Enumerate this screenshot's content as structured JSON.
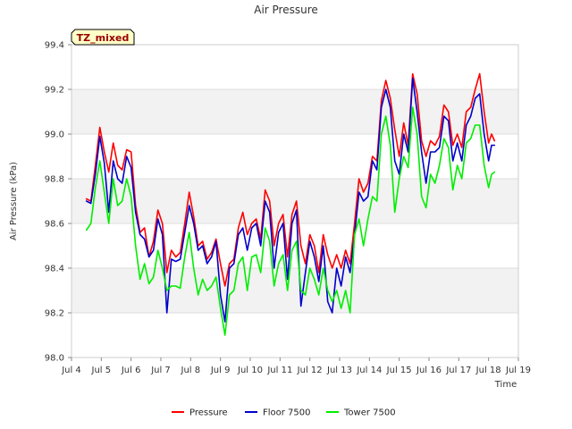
{
  "chart_data": {
    "type": "line",
    "title": "Air Pressure",
    "xlabel": "Time",
    "ylabel": "Air Pressure (kPa)",
    "badge": "TZ_mixed",
    "xlim": [
      4,
      19
    ],
    "ylim": [
      98.0,
      99.4
    ],
    "x_ticks": [
      {
        "v": 4,
        "label": "Jul 4"
      },
      {
        "v": 5,
        "label": "Jul 5"
      },
      {
        "v": 6,
        "label": "Jul 6"
      },
      {
        "v": 7,
        "label": "Jul 7"
      },
      {
        "v": 8,
        "label": "Jul 8"
      },
      {
        "v": 9,
        "label": "Jul 9"
      },
      {
        "v": 10,
        "label": "Jul 10"
      },
      {
        "v": 11,
        "label": "Jul 11"
      },
      {
        "v": 12,
        "label": "Jul 12"
      },
      {
        "v": 13,
        "label": "Jul 13"
      },
      {
        "v": 14,
        "label": "Jul 14"
      },
      {
        "v": 15,
        "label": "Jul 15"
      },
      {
        "v": 16,
        "label": "Jul 16"
      },
      {
        "v": 17,
        "label": "Jul 17"
      },
      {
        "v": 18,
        "label": "Jul 18"
      },
      {
        "v": 19,
        "label": "Jul 19"
      }
    ],
    "y_ticks": [
      98.0,
      98.2,
      98.4,
      98.6,
      98.8,
      99.0,
      99.2,
      99.4
    ],
    "grid": true,
    "legend_position": "bottom",
    "series": [
      {
        "name": "Pressure",
        "color": "#ff0000",
        "points": [
          [
            4.5,
            98.71
          ],
          [
            4.65,
            98.7
          ],
          [
            4.8,
            98.86
          ],
          [
            4.95,
            99.03
          ],
          [
            5.1,
            98.92
          ],
          [
            5.25,
            98.83
          ],
          [
            5.4,
            98.96
          ],
          [
            5.55,
            98.86
          ],
          [
            5.7,
            98.84
          ],
          [
            5.85,
            98.93
          ],
          [
            6.0,
            98.92
          ],
          [
            6.15,
            98.68
          ],
          [
            6.3,
            98.56
          ],
          [
            6.45,
            98.58
          ],
          [
            6.6,
            98.45
          ],
          [
            6.75,
            98.52
          ],
          [
            6.9,
            98.66
          ],
          [
            7.05,
            98.6
          ],
          [
            7.2,
            98.38
          ],
          [
            7.35,
            98.48
          ],
          [
            7.5,
            98.45
          ],
          [
            7.65,
            98.47
          ],
          [
            7.8,
            98.6
          ],
          [
            7.95,
            98.74
          ],
          [
            8.1,
            98.63
          ],
          [
            8.25,
            98.5
          ],
          [
            8.4,
            98.52
          ],
          [
            8.55,
            98.44
          ],
          [
            8.7,
            98.47
          ],
          [
            8.85,
            98.53
          ],
          [
            9.0,
            98.42
          ],
          [
            9.15,
            98.32
          ],
          [
            9.3,
            98.42
          ],
          [
            9.45,
            98.44
          ],
          [
            9.6,
            98.58
          ],
          [
            9.75,
            98.65
          ],
          [
            9.9,
            98.55
          ],
          [
            10.05,
            98.6
          ],
          [
            10.2,
            98.62
          ],
          [
            10.35,
            98.53
          ],
          [
            10.5,
            98.75
          ],
          [
            10.65,
            98.7
          ],
          [
            10.8,
            98.5
          ],
          [
            10.95,
            98.6
          ],
          [
            11.1,
            98.64
          ],
          [
            11.25,
            98.45
          ],
          [
            11.4,
            98.64
          ],
          [
            11.55,
            98.7
          ],
          [
            11.7,
            98.5
          ],
          [
            11.85,
            98.42
          ],
          [
            12.0,
            98.55
          ],
          [
            12.15,
            98.5
          ],
          [
            12.3,
            98.38
          ],
          [
            12.45,
            98.55
          ],
          [
            12.6,
            98.46
          ],
          [
            12.75,
            98.4
          ],
          [
            12.9,
            98.46
          ],
          [
            13.05,
            98.4
          ],
          [
            13.2,
            98.48
          ],
          [
            13.35,
            98.42
          ],
          [
            13.5,
            98.6
          ],
          [
            13.65,
            98.8
          ],
          [
            13.8,
            98.74
          ],
          [
            13.95,
            98.78
          ],
          [
            14.1,
            98.9
          ],
          [
            14.25,
            98.88
          ],
          [
            14.4,
            99.15
          ],
          [
            14.55,
            99.24
          ],
          [
            14.7,
            99.16
          ],
          [
            14.85,
            99.02
          ],
          [
            15.0,
            98.9
          ],
          [
            15.15,
            99.05
          ],
          [
            15.3,
            98.95
          ],
          [
            15.45,
            99.27
          ],
          [
            15.6,
            99.18
          ],
          [
            15.75,
            98.97
          ],
          [
            15.9,
            98.9
          ],
          [
            16.05,
            98.97
          ],
          [
            16.2,
            98.95
          ],
          [
            16.35,
            98.99
          ],
          [
            16.5,
            99.13
          ],
          [
            16.65,
            99.1
          ],
          [
            16.8,
            98.95
          ],
          [
            16.95,
            99.0
          ],
          [
            17.1,
            98.94
          ],
          [
            17.25,
            99.1
          ],
          [
            17.4,
            99.12
          ],
          [
            17.55,
            99.2
          ],
          [
            17.7,
            99.27
          ],
          [
            17.85,
            99.1
          ],
          [
            18.0,
            98.96
          ],
          [
            18.1,
            99.0
          ],
          [
            18.2,
            98.97
          ]
        ]
      },
      {
        "name": "Floor 7500",
        "color": "#0000cc",
        "points": [
          [
            4.5,
            98.7
          ],
          [
            4.65,
            98.69
          ],
          [
            4.8,
            98.82
          ],
          [
            4.95,
            98.99
          ],
          [
            5.1,
            98.87
          ],
          [
            5.25,
            98.65
          ],
          [
            5.4,
            98.88
          ],
          [
            5.55,
            98.8
          ],
          [
            5.7,
            98.78
          ],
          [
            5.85,
            98.9
          ],
          [
            6.0,
            98.85
          ],
          [
            6.15,
            98.65
          ],
          [
            6.3,
            98.55
          ],
          [
            6.45,
            98.53
          ],
          [
            6.6,
            98.45
          ],
          [
            6.75,
            98.48
          ],
          [
            6.9,
            98.62
          ],
          [
            7.05,
            98.55
          ],
          [
            7.2,
            98.2
          ],
          [
            7.35,
            98.44
          ],
          [
            7.5,
            98.43
          ],
          [
            7.65,
            98.44
          ],
          [
            7.8,
            98.56
          ],
          [
            7.95,
            98.68
          ],
          [
            8.1,
            98.6
          ],
          [
            8.25,
            98.48
          ],
          [
            8.4,
            98.5
          ],
          [
            8.55,
            98.42
          ],
          [
            8.7,
            98.45
          ],
          [
            8.85,
            98.52
          ],
          [
            9.0,
            98.28
          ],
          [
            9.15,
            98.16
          ],
          [
            9.3,
            98.4
          ],
          [
            9.45,
            98.42
          ],
          [
            9.6,
            98.55
          ],
          [
            9.75,
            98.58
          ],
          [
            9.9,
            98.48
          ],
          [
            10.05,
            98.58
          ],
          [
            10.2,
            98.6
          ],
          [
            10.35,
            98.5
          ],
          [
            10.5,
            98.7
          ],
          [
            10.65,
            98.65
          ],
          [
            10.8,
            98.4
          ],
          [
            10.95,
            98.56
          ],
          [
            11.1,
            98.6
          ],
          [
            11.25,
            98.35
          ],
          [
            11.4,
            98.6
          ],
          [
            11.55,
            98.66
          ],
          [
            11.7,
            98.23
          ],
          [
            11.85,
            98.38
          ],
          [
            12.0,
            98.52
          ],
          [
            12.15,
            98.45
          ],
          [
            12.3,
            98.34
          ],
          [
            12.45,
            98.5
          ],
          [
            12.6,
            98.25
          ],
          [
            12.75,
            98.2
          ],
          [
            12.9,
            98.4
          ],
          [
            13.05,
            98.32
          ],
          [
            13.2,
            98.45
          ],
          [
            13.35,
            98.38
          ],
          [
            13.5,
            98.55
          ],
          [
            13.65,
            98.74
          ],
          [
            13.8,
            98.7
          ],
          [
            13.95,
            98.72
          ],
          [
            14.1,
            98.88
          ],
          [
            14.25,
            98.84
          ],
          [
            14.4,
            99.12
          ],
          [
            14.55,
            99.2
          ],
          [
            14.7,
            99.12
          ],
          [
            14.85,
            98.88
          ],
          [
            15.0,
            98.82
          ],
          [
            15.15,
            99.0
          ],
          [
            15.3,
            98.92
          ],
          [
            15.45,
            99.25
          ],
          [
            15.6,
            99.1
          ],
          [
            15.75,
            98.92
          ],
          [
            15.9,
            98.78
          ],
          [
            16.05,
            98.92
          ],
          [
            16.2,
            98.92
          ],
          [
            16.35,
            98.94
          ],
          [
            16.5,
            99.08
          ],
          [
            16.65,
            99.06
          ],
          [
            16.8,
            98.88
          ],
          [
            16.95,
            98.96
          ],
          [
            17.1,
            98.88
          ],
          [
            17.25,
            99.04
          ],
          [
            17.4,
            99.08
          ],
          [
            17.55,
            99.16
          ],
          [
            17.7,
            99.18
          ],
          [
            17.85,
            99.0
          ],
          [
            18.0,
            98.88
          ],
          [
            18.1,
            98.95
          ],
          [
            18.2,
            98.95
          ]
        ]
      },
      {
        "name": "Tower 7500",
        "color": "#00ee00",
        "points": [
          [
            4.5,
            98.57
          ],
          [
            4.65,
            98.6
          ],
          [
            4.8,
            98.76
          ],
          [
            4.95,
            98.88
          ],
          [
            5.1,
            98.74
          ],
          [
            5.25,
            98.6
          ],
          [
            5.4,
            98.8
          ],
          [
            5.55,
            98.68
          ],
          [
            5.7,
            98.7
          ],
          [
            5.85,
            98.8
          ],
          [
            6.0,
            98.72
          ],
          [
            6.15,
            98.5
          ],
          [
            6.3,
            98.35
          ],
          [
            6.45,
            98.42
          ],
          [
            6.6,
            98.33
          ],
          [
            6.75,
            98.36
          ],
          [
            6.9,
            98.48
          ],
          [
            7.05,
            98.4
          ],
          [
            7.2,
            98.3
          ],
          [
            7.35,
            98.32
          ],
          [
            7.5,
            98.32
          ],
          [
            7.65,
            98.31
          ],
          [
            7.8,
            98.45
          ],
          [
            7.95,
            98.56
          ],
          [
            8.1,
            98.4
          ],
          [
            8.25,
            98.28
          ],
          [
            8.4,
            98.35
          ],
          [
            8.55,
            98.3
          ],
          [
            8.7,
            98.32
          ],
          [
            8.85,
            98.36
          ],
          [
            9.0,
            98.22
          ],
          [
            9.15,
            98.1
          ],
          [
            9.3,
            98.28
          ],
          [
            9.45,
            98.3
          ],
          [
            9.6,
            98.42
          ],
          [
            9.75,
            98.45
          ],
          [
            9.9,
            98.3
          ],
          [
            10.05,
            98.45
          ],
          [
            10.2,
            98.46
          ],
          [
            10.35,
            98.38
          ],
          [
            10.5,
            98.58
          ],
          [
            10.65,
            98.52
          ],
          [
            10.8,
            98.32
          ],
          [
            10.95,
            98.42
          ],
          [
            11.1,
            98.46
          ],
          [
            11.25,
            98.3
          ],
          [
            11.4,
            98.48
          ],
          [
            11.55,
            98.52
          ],
          [
            11.7,
            98.3
          ],
          [
            11.85,
            98.28
          ],
          [
            12.0,
            98.4
          ],
          [
            12.15,
            98.35
          ],
          [
            12.3,
            98.28
          ],
          [
            12.45,
            98.4
          ],
          [
            12.6,
            98.3
          ],
          [
            12.75,
            98.25
          ],
          [
            12.9,
            98.3
          ],
          [
            13.05,
            98.22
          ],
          [
            13.2,
            98.3
          ],
          [
            13.35,
            98.2
          ],
          [
            13.5,
            98.55
          ],
          [
            13.65,
            98.62
          ],
          [
            13.8,
            98.5
          ],
          [
            13.95,
            98.62
          ],
          [
            14.1,
            98.72
          ],
          [
            14.25,
            98.7
          ],
          [
            14.4,
            99.0
          ],
          [
            14.55,
            99.08
          ],
          [
            14.7,
            98.95
          ],
          [
            14.85,
            98.65
          ],
          [
            15.0,
            98.8
          ],
          [
            15.15,
            98.9
          ],
          [
            15.3,
            98.85
          ],
          [
            15.45,
            99.12
          ],
          [
            15.6,
            99.0
          ],
          [
            15.75,
            98.72
          ],
          [
            15.9,
            98.67
          ],
          [
            16.05,
            98.82
          ],
          [
            16.2,
            98.78
          ],
          [
            16.35,
            98.86
          ],
          [
            16.5,
            98.98
          ],
          [
            16.65,
            98.94
          ],
          [
            16.8,
            98.75
          ],
          [
            16.95,
            98.86
          ],
          [
            17.1,
            98.8
          ],
          [
            17.25,
            98.96
          ],
          [
            17.4,
            98.98
          ],
          [
            17.55,
            99.04
          ],
          [
            17.7,
            99.04
          ],
          [
            17.85,
            98.86
          ],
          [
            18.0,
            98.76
          ],
          [
            18.1,
            98.82
          ],
          [
            18.2,
            98.83
          ]
        ]
      }
    ]
  }
}
